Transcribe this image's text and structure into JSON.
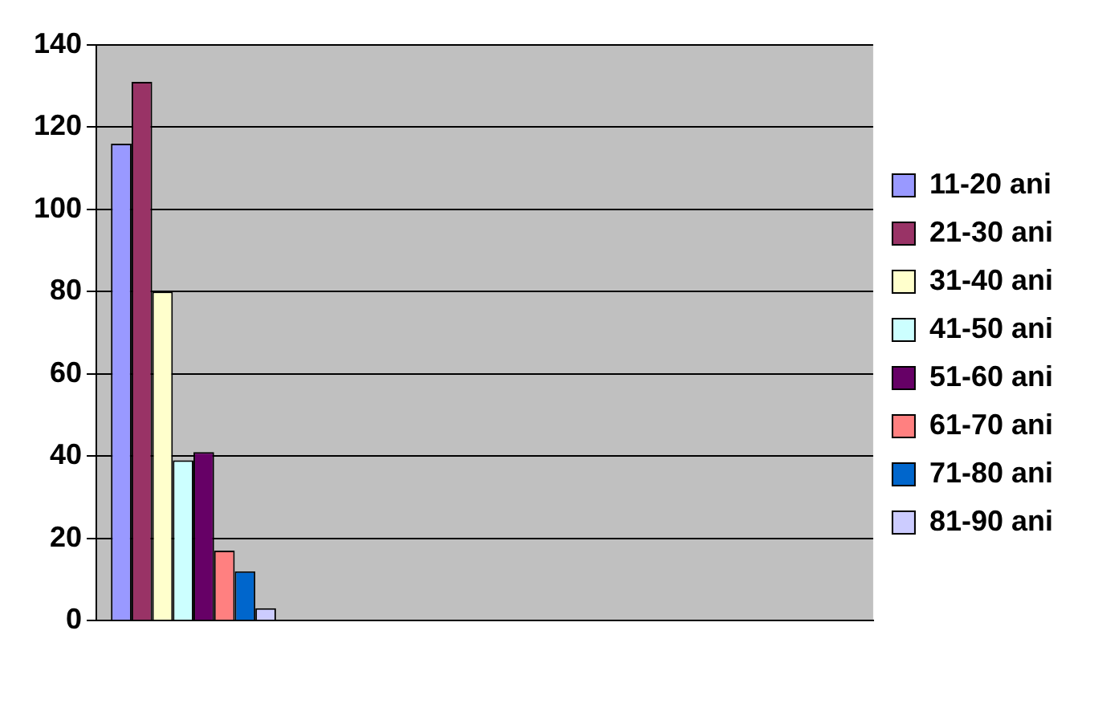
{
  "chart_data": {
    "type": "bar",
    "categories": [
      null,
      null,
      null,
      null
    ],
    "series": [
      {
        "name": "11-20 ani",
        "color": "#9999ff",
        "values": [
          116,
          null,
          null,
          null
        ]
      },
      {
        "name": "21-30 ani",
        "color": "#993366",
        "values": [
          131,
          null,
          null,
          null
        ]
      },
      {
        "name": "31-40 ani",
        "color": "#ffffcc",
        "values": [
          80,
          null,
          null,
          null
        ]
      },
      {
        "name": "41-50 ani",
        "color": "#ccffff",
        "values": [
          39,
          null,
          null,
          null
        ]
      },
      {
        "name": "51-60 ani",
        "color": "#660066",
        "values": [
          41,
          null,
          null,
          null
        ]
      },
      {
        "name": "61-70 ani",
        "color": "#ff8080",
        "values": [
          17,
          null,
          null,
          null
        ]
      },
      {
        "name": "71-80 ani",
        "color": "#0066cc",
        "values": [
          12,
          null,
          null,
          null
        ]
      },
      {
        "name": "81-90 ani",
        "color": "#ccccff",
        "values": [
          3,
          null,
          null,
          null
        ]
      }
    ],
    "ylim": [
      0,
      140
    ],
    "yticks": [
      0,
      20,
      40,
      60,
      80,
      100,
      120,
      140
    ],
    "grid": "y",
    "legend": "right"
  }
}
